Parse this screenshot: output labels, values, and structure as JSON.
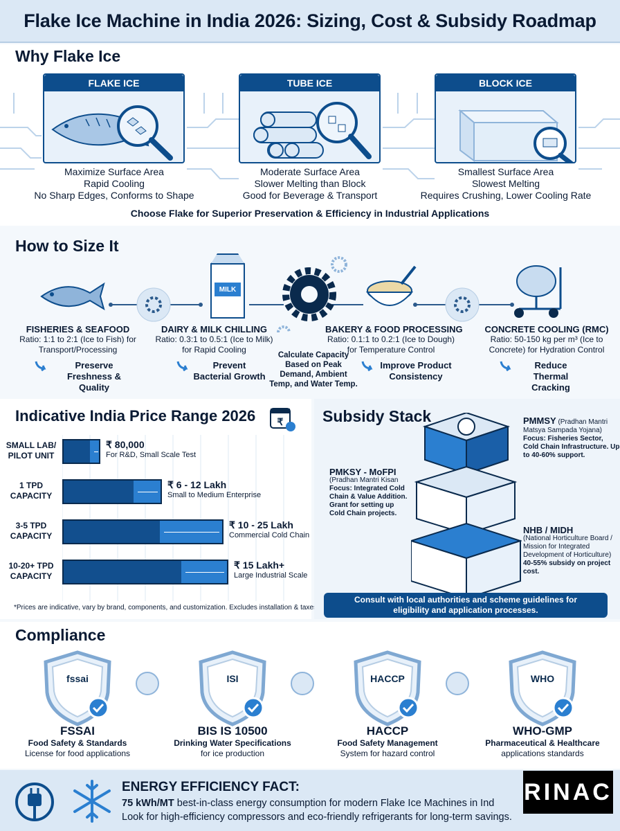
{
  "header": {
    "title": "Flake Ice Machine in India 2026: Sizing, Cost & Subsidy Roadmap"
  },
  "why": {
    "title": "Why Flake Ice",
    "cards": [
      {
        "label": "FLAKE ICE",
        "icon": "fish-magnifier-icon",
        "lines": [
          "Maximize Surface Area",
          "Rapid Cooling",
          "No Sharp Edges, Conforms to Shape"
        ]
      },
      {
        "label": "TUBE ICE",
        "icon": "tube-ice-magnifier-icon",
        "lines": [
          "Moderate Surface Area",
          "Slower Melting than Block",
          "Good for Beverage & Transport"
        ]
      },
      {
        "label": "BLOCK ICE",
        "icon": "block-ice-magnifier-icon",
        "lines": [
          "Smallest Surface Area",
          "Slowest Melting",
          "Requires Crushing, Lower Cooling Rate"
        ]
      }
    ],
    "conclusion": "Choose Flake for Superior Preservation & Efficiency in Industrial Applications"
  },
  "size": {
    "title": "How to Size It",
    "center_note": "Calculate Capacity Based on Peak Demand, Ambient Temp, and Water Temp.",
    "items": [
      {
        "title": "FISHERIES & SEAFOOD",
        "ratio": "Ratio: 1:1 to 2:1 (Ice to Fish) for Transport/Processing",
        "benefit": "Preserve Freshness & Quality",
        "icon": "fish-icon"
      },
      {
        "title": "DAIRY & MILK CHILLING",
        "ratio": "Ratio: 0.3:1 to 0.5:1 (Ice to Milk) for Rapid Cooling",
        "benefit": "Prevent Bacterial Growth",
        "icon": "milk-carton-icon",
        "icon_text": "MILK"
      },
      {
        "title": "BAKERY & FOOD PROCESSING",
        "ratio": "Ratio: 0.1:1 to 0.2:1 (Ice to Dough) for Temperature Control",
        "benefit": "Improve Product Consistency",
        "icon": "dough-bowl-icon"
      },
      {
        "title": "CONCRETE COOLING (RMC)",
        "ratio": "Ratio: 50-150 kg per m³ (Ice to Concrete) for Hydration Control",
        "benefit": "Reduce Thermal Cracking",
        "icon": "concrete-mixer-icon"
      }
    ]
  },
  "price": {
    "title": "Indicative India Price Range 2026",
    "rows": [
      {
        "label": "SMALL LAB/ PILOT UNIT",
        "price": "₹ 80,000",
        "sub": "For R&D, Small Scale Test",
        "fill": 0.16,
        "range_end": 0.23
      },
      {
        "label": "1 TPD CAPACITY",
        "price": "₹ 6 - 12 Lakh",
        "sub": "Small to Medium Enterprise",
        "fill": 0.42,
        "range_end": 0.6
      },
      {
        "label": "3-5 TPD CAPACITY",
        "price": "₹ 10 - 25 Lakh",
        "sub": "Commercial Cold Chain",
        "fill": 0.58,
        "range_end": 0.97
      },
      {
        "label": "10-20+ TPD CAPACITY",
        "price": "₹ 15 Lakh+",
        "sub": "Large Industrial Scale",
        "fill": 0.71,
        "range_end": 1.0
      }
    ],
    "footnote": "*Prices are indicative, vary by brand, components, and customization. Excludes installation & taxes.*"
  },
  "subsidy": {
    "title": "Subsidy Stack",
    "pmmsy": {
      "name": "PMMSY",
      "full": "(Pradhan Mantri Matsya Sampada Yojana)",
      "detail": "Focus: Fisheries Sector, Cold Chain Infrastructure. Up to 40-60% support."
    },
    "pmksy": {
      "name": "PMKSY - MoFPI",
      "full": "(Pradhan Mantri Kisan",
      "detail": "Focus: Integrated Cold Chain & Value Addition. Grant for setting up Cold Chain projects."
    },
    "nhb": {
      "name": "NHB / MIDH",
      "full": "(National Horticulture Board / Mission for Integrated Development of Horticulture)",
      "detail": "40-55% subsidy on project cost."
    },
    "consult": "Consult with local authorities and scheme guidelines for eligibility and application processes."
  },
  "compliance": {
    "title": "Compliance",
    "items": [
      {
        "name": "FSSAI",
        "logo": "fssai",
        "desc1": "Food Safety & Standards",
        "desc2": "License for food applications"
      },
      {
        "name": "BIS IS 10500",
        "logo": "ISI",
        "desc1": "Drinking Water Specifications",
        "desc2": "for ice production"
      },
      {
        "name": "HACCP",
        "logo": "HACCP",
        "desc1": "Food Safety Management",
        "desc2": "System for hazard control"
      },
      {
        "name": "WHO-GMP",
        "logo": "WHO",
        "desc1": "Pharmaceutical & Healthcare",
        "desc2": "applications standards"
      }
    ]
  },
  "energy": {
    "title": "ENERGY EFFICIENCY FACT:",
    "highlight": "75 kWh/MT",
    "line1_rest": " best-in-class energy consumption for modern Flake Ice Machines in Ind",
    "line2": "Look for high-efficiency compressors and eco-friendly refrigerants for long-term savings."
  },
  "brand": {
    "logo_text": "RINAC"
  },
  "colors": {
    "navy": "#0d4d8c",
    "light": "#dbe8f5",
    "accent": "#2b7fd0"
  }
}
